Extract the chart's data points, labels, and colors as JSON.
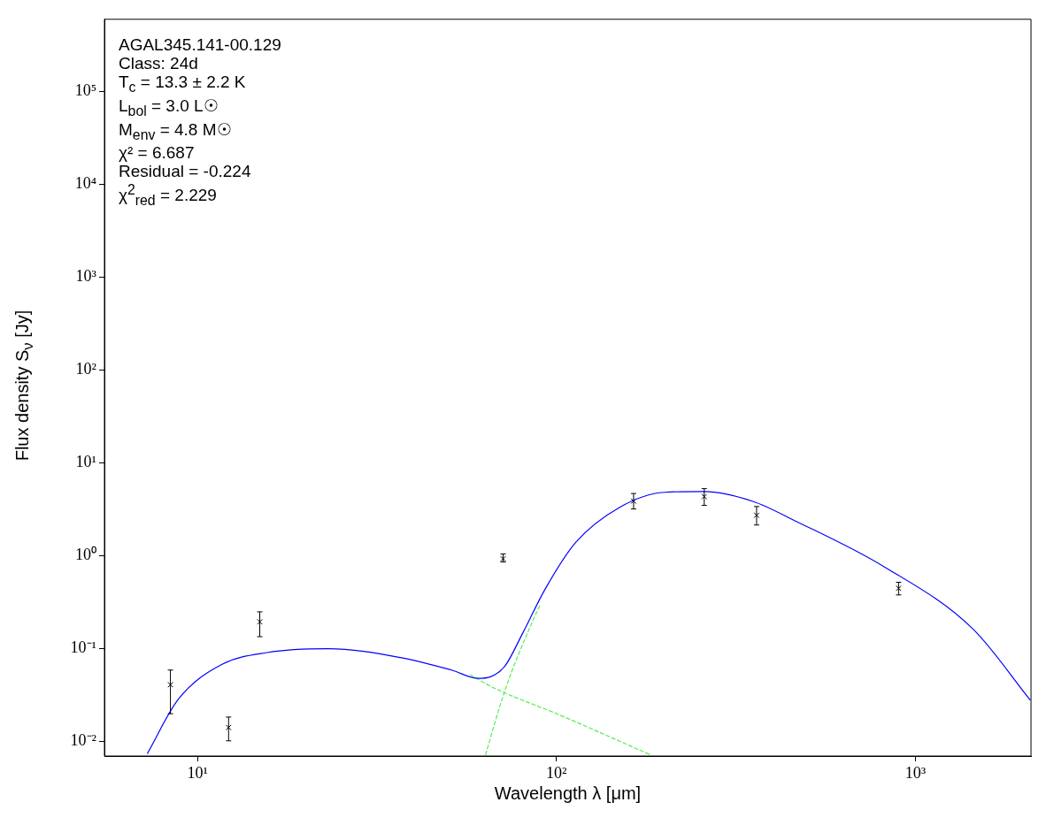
{
  "chart_data": {
    "type": "scatter",
    "xlabel": "Wavelength λ [μm]",
    "ylabel": "Flux density S$_{ν}$ [Jy]",
    "log": "xy",
    "grid": false,
    "legend": false,
    "xlim": [
      5.5,
      2100
    ],
    "ylim": [
      0.007,
      600000
    ],
    "xticks": [
      {
        "value": 10,
        "label": "10¹"
      },
      {
        "value": 100,
        "label": "10²"
      },
      {
        "value": 1000,
        "label": "10³"
      }
    ],
    "yticks": [
      {
        "value": 0.01,
        "label": "10⁻²"
      },
      {
        "value": 0.1,
        "label": "10⁻¹"
      },
      {
        "value": 1,
        "label": "10⁰"
      },
      {
        "value": 10,
        "label": "10¹"
      },
      {
        "value": 100,
        "label": "10²"
      },
      {
        "value": 1000,
        "label": "10³"
      },
      {
        "value": 10000,
        "label": "10⁴"
      },
      {
        "value": 100000,
        "label": "10⁵"
      }
    ],
    "annotations": [
      "AGAL345.141-00.129",
      "Class: 24d",
      "T$_{c}$ = 13.3 ± 2.2 K",
      "L$_{bol}$ = 3.0 L☉",
      "M$_{env}$ = 4.8 M☉",
      "χ² = 6.687",
      "Residual = -0.224",
      "χ$^{2}$$_{red}$ = 2.229"
    ],
    "series": [
      {
        "type": "line",
        "color": "#0000ff",
        "line_style": "solid",
        "marker": "none",
        "x": [
          7.24,
          8.83,
          11.7,
          15.6,
          23.1,
          36.4,
          51,
          60.5,
          65.5,
          71.8,
          80.5,
          93,
          113,
          150,
          200,
          258,
          351,
          466,
          820,
          1445,
          2090
        ],
        "values": [
          0.0074,
          0.0285,
          0.068,
          0.091,
          0.1,
          0.081,
          0.059,
          0.048,
          0.05,
          0.065,
          0.147,
          0.44,
          1.39,
          3.34,
          4.84,
          4.94,
          3.89,
          2.35,
          0.76,
          0.164,
          0.028
        ]
      },
      {
        "type": "line",
        "color": "#55ee55",
        "line_style": "dashed",
        "marker": "none",
        "x": [
          63.4,
          71.8,
          85,
          90
        ],
        "values": [
          0.0072,
          0.0355,
          0.183,
          0.296
        ]
      },
      {
        "type": "line",
        "color": "#55ee55",
        "line_style": "dashed",
        "marker": "none",
        "x": [
          57.4,
          67.8,
          101,
          183
        ],
        "values": [
          0.0525,
          0.037,
          0.0197,
          0.0072
        ]
      },
      {
        "color": "#000000",
        "marker": "cross",
        "x": [
          8.4,
          12.2,
          14.9,
          71,
          164,
          258,
          361,
          898
        ],
        "values": [
          0.041,
          0.0142,
          0.195,
          0.93,
          3.89,
          4.35,
          2.74,
          0.448
        ],
        "errors": [
          [
            0.02,
            0.059
          ],
          [
            0.0102,
            0.0184
          ],
          [
            0.135,
            0.25
          ],
          [
            0.86,
            1.05
          ],
          [
            3.2,
            4.7
          ],
          [
            3.5,
            5.3
          ],
          [
            2.15,
            3.4
          ],
          [
            0.38,
            0.52
          ]
        ]
      }
    ]
  }
}
